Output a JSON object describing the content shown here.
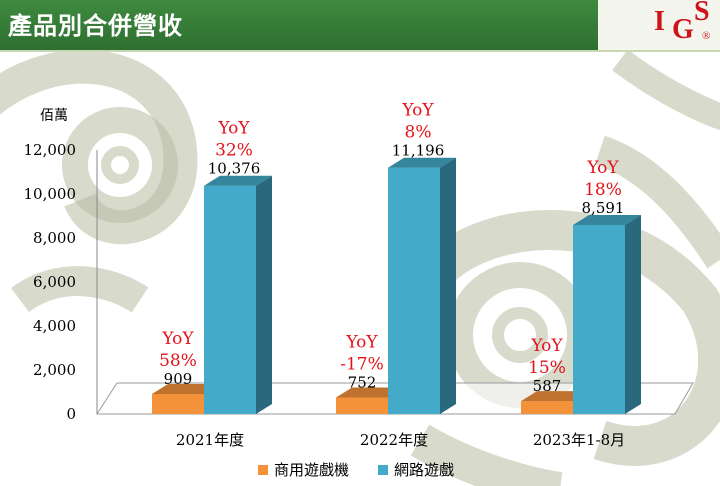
{
  "header": {
    "title": "產品別合併營收"
  },
  "logo": {
    "letters": [
      "I",
      "G",
      "S"
    ],
    "registered": "®"
  },
  "colors": {
    "header_green": "#327735",
    "arcade": "#f4923a",
    "online": "#44aac9",
    "yoy_red": "#e3131b"
  },
  "chart_data": {
    "type": "bar",
    "ylabel": "佰萬",
    "ylim": [
      0,
      12000
    ],
    "yticks": [
      "0",
      "2,000",
      "4,000",
      "6,000",
      "8,000",
      "10,000",
      "12,000"
    ],
    "categories": [
      "2021年度",
      "2022年度",
      "2023年1-8月"
    ],
    "series": [
      {
        "name": "商用遊戲機",
        "values": [
          909,
          752,
          587
        ],
        "labels": [
          "909",
          "752",
          "587"
        ],
        "yoy_prefix": [
          "YoY",
          "YoY",
          "YoY"
        ],
        "yoy": [
          "58%",
          "-17%",
          "15%"
        ]
      },
      {
        "name": "網路遊戲",
        "values": [
          10376,
          11196,
          8591
        ],
        "labels": [
          "10,376",
          "11,196",
          "8,591"
        ],
        "yoy_prefix": [
          "YoY",
          "YoY",
          "YoY"
        ],
        "yoy": [
          "32%",
          "8%",
          "18%"
        ]
      }
    ],
    "legend_position": "bottom",
    "grid": false
  }
}
